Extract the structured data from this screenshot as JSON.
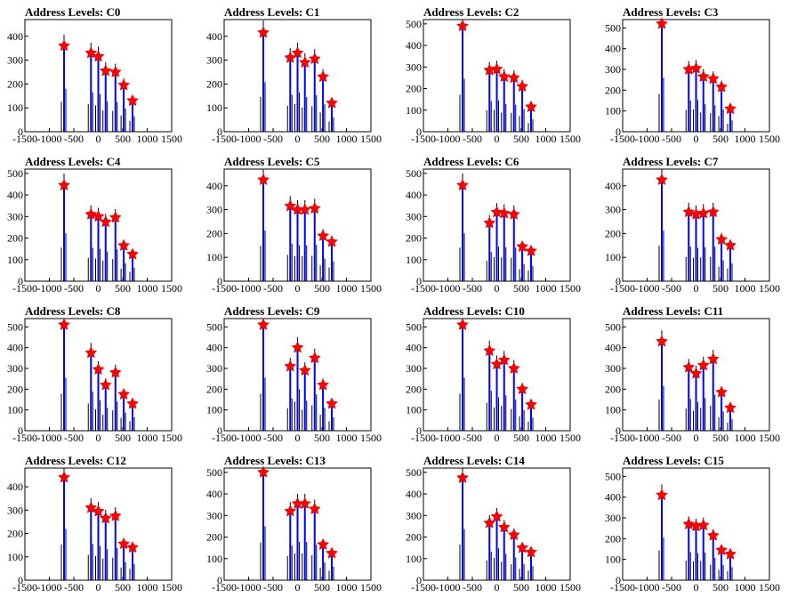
{
  "page": {
    "xlim": [
      -1500,
      1500
    ],
    "x_ticks": [
      -1500,
      -1000,
      -500,
      0,
      500,
      1000,
      1500
    ],
    "colors": {
      "histogram": "#000000",
      "filtered": "#0000ff",
      "marker": "#ff0000"
    },
    "peak_x": [
      -700,
      -150,
      0,
      150,
      350,
      520,
      700
    ]
  },
  "chart_data": [
    {
      "type": "bar",
      "title": "Address Levels: C0",
      "ylim": [
        0,
        470
      ],
      "y_ticks": [
        0,
        100,
        200,
        300,
        400
      ],
      "peaks": [
        360,
        330,
        315,
        255,
        250,
        195,
        130
      ]
    },
    {
      "type": "bar",
      "title": "Address Levels: C1",
      "ylim": [
        0,
        470
      ],
      "y_ticks": [
        0,
        100,
        200,
        300,
        400
      ],
      "peaks": [
        415,
        310,
        330,
        290,
        305,
        230,
        120
      ]
    },
    {
      "type": "bar",
      "title": "Address Levels: C2",
      "ylim": [
        0,
        520
      ],
      "y_ticks": [
        0,
        100,
        200,
        300,
        400,
        500
      ],
      "peaks": [
        490,
        285,
        290,
        255,
        250,
        210,
        115
      ]
    },
    {
      "type": "bar",
      "title": "Address Levels: C3",
      "ylim": [
        0,
        540
      ],
      "y_ticks": [
        0,
        100,
        200,
        300,
        400,
        500
      ],
      "peaks": [
        520,
        300,
        305,
        265,
        255,
        215,
        110
      ]
    },
    {
      "type": "bar",
      "title": "Address Levels: C4",
      "ylim": [
        0,
        520
      ],
      "y_ticks": [
        0,
        100,
        200,
        300,
        400,
        500
      ],
      "peaks": [
        445,
        310,
        300,
        275,
        295,
        165,
        125
      ]
    },
    {
      "type": "bar",
      "title": "Address Levels: C5",
      "ylim": [
        0,
        470
      ],
      "y_ticks": [
        0,
        100,
        200,
        300,
        400
      ],
      "peaks": [
        425,
        315,
        300,
        300,
        305,
        190,
        165
      ]
    },
    {
      "type": "bar",
      "title": "Address Levels: C6",
      "ylim": [
        0,
        520
      ],
      "y_ticks": [
        0,
        100,
        200,
        300,
        400,
        500
      ],
      "peaks": [
        445,
        270,
        320,
        315,
        310,
        160,
        140
      ]
    },
    {
      "type": "bar",
      "title": "Address Levels: C7",
      "ylim": [
        0,
        470
      ],
      "y_ticks": [
        0,
        100,
        200,
        300,
        400
      ],
      "peaks": [
        425,
        290,
        280,
        285,
        290,
        175,
        150
      ]
    },
    {
      "type": "bar",
      "title": "Address Levels: C8",
      "ylim": [
        0,
        540
      ],
      "y_ticks": [
        0,
        100,
        200,
        300,
        400,
        500
      ],
      "peaks": [
        510,
        375,
        295,
        220,
        280,
        175,
        130
      ]
    },
    {
      "type": "bar",
      "title": "Address Levels: C9",
      "ylim": [
        0,
        540
      ],
      "y_ticks": [
        0,
        100,
        200,
        300,
        400,
        500
      ],
      "peaks": [
        510,
        310,
        400,
        290,
        350,
        220,
        130
      ]
    },
    {
      "type": "bar",
      "title": "Address Levels: C10",
      "ylim": [
        0,
        540
      ],
      "y_ticks": [
        0,
        100,
        200,
        300,
        400,
        500
      ],
      "peaks": [
        510,
        385,
        320,
        340,
        300,
        200,
        125
      ]
    },
    {
      "type": "bar",
      "title": "Address Levels: C11",
      "ylim": [
        0,
        540
      ],
      "y_ticks": [
        0,
        100,
        200,
        300,
        400,
        500
      ],
      "peaks": [
        430,
        305,
        275,
        315,
        345,
        185,
        110
      ]
    },
    {
      "type": "bar",
      "title": "Address Levels: C12",
      "ylim": [
        0,
        480
      ],
      "y_ticks": [
        0,
        100,
        200,
        300,
        400
      ],
      "peaks": [
        440,
        310,
        295,
        265,
        275,
        155,
        140
      ]
    },
    {
      "type": "bar",
      "title": "Address Levels: C13",
      "ylim": [
        0,
        520
      ],
      "y_ticks": [
        0,
        100,
        200,
        300,
        400,
        500
      ],
      "peaks": [
        500,
        320,
        355,
        355,
        330,
        165,
        125
      ]
    },
    {
      "type": "bar",
      "title": "Address Levels: C14",
      "ylim": [
        0,
        520
      ],
      "y_ticks": [
        0,
        100,
        200,
        300,
        400,
        500
      ],
      "peaks": [
        475,
        265,
        295,
        245,
        210,
        150,
        130
      ]
    },
    {
      "type": "bar",
      "title": "Address Levels: C15",
      "ylim": [
        0,
        540
      ],
      "y_ticks": [
        0,
        100,
        200,
        300,
        400,
        500
      ],
      "peaks": [
        410,
        270,
        260,
        265,
        215,
        145,
        125
      ]
    }
  ]
}
